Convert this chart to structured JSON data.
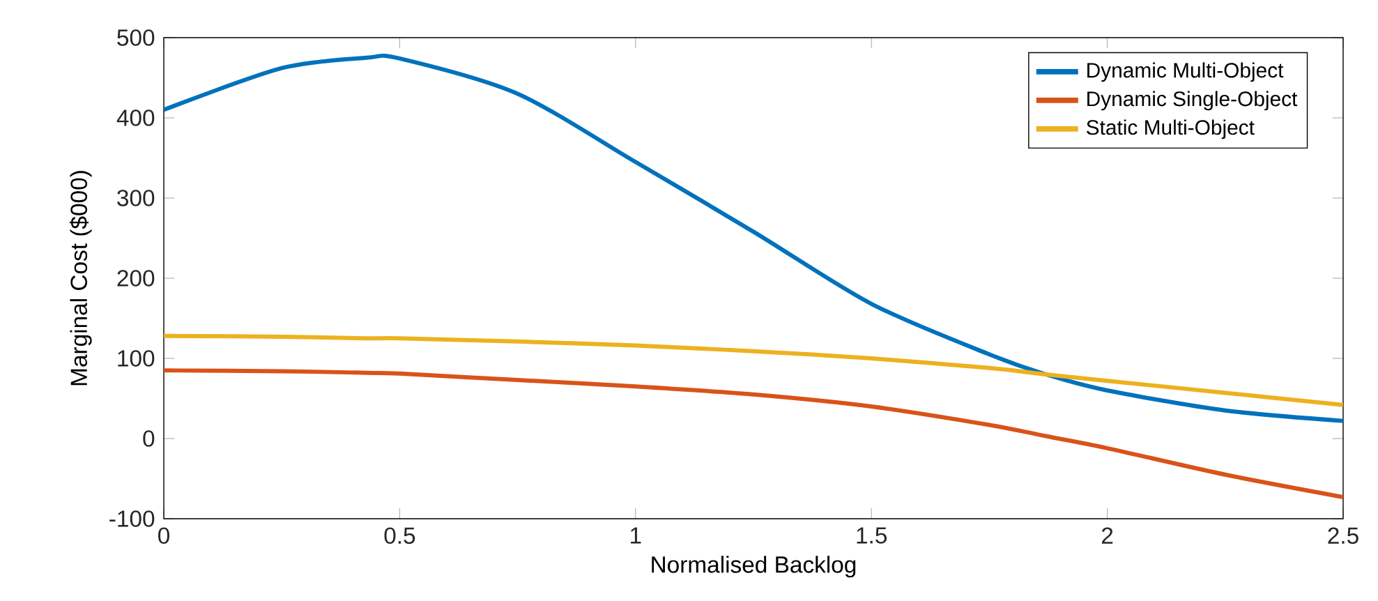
{
  "chart_data": {
    "type": "line",
    "xlabel": "Normalised Backlog",
    "ylabel": "Marginal Cost ($000)",
    "x": [
      0,
      0.25,
      0.43,
      0.5,
      0.75,
      1,
      1.25,
      1.5,
      1.75,
      1.87,
      2,
      2.25,
      2.5
    ],
    "series": [
      {
        "name": "Dynamic Multi-Object",
        "color": "#0072bd",
        "values": [
          410,
          462,
          475,
          474,
          430,
          345,
          258,
          168,
          105,
          80,
          60,
          35,
          22
        ]
      },
      {
        "name": "Dynamic Single-Object",
        "color": "#d95319",
        "values": [
          85,
          84,
          82,
          81,
          73,
          65,
          55,
          40,
          17,
          3,
          -12,
          -45,
          -73
        ]
      },
      {
        "name": "Static Multi-Object",
        "color": "#edb120",
        "values": [
          128,
          127,
          125,
          125,
          121,
          116,
          109,
          100,
          88,
          80,
          72,
          57,
          42
        ]
      }
    ],
    "xlim": [
      0,
      2.5
    ],
    "ylim": [
      -100,
      500
    ],
    "xticks": [
      0,
      0.5,
      1,
      1.5,
      2,
      2.5
    ],
    "yticks": [
      -100,
      0,
      100,
      200,
      300,
      400,
      500
    ],
    "legend": "top right"
  }
}
